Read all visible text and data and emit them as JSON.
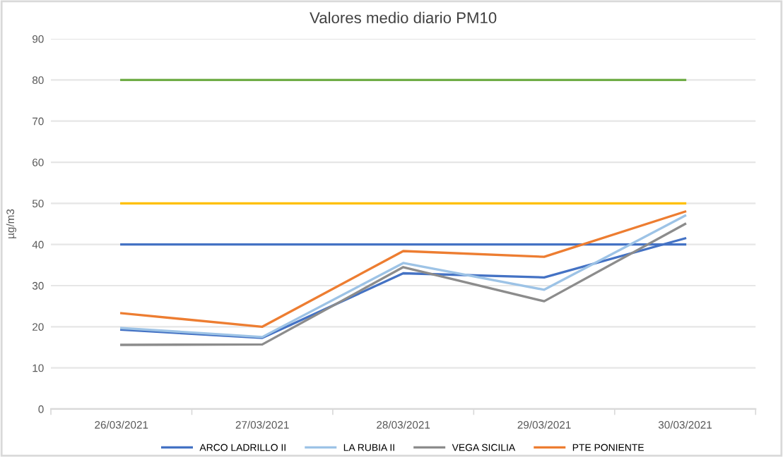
{
  "chart_data": {
    "type": "line",
    "title": "Valores medio diario PM10",
    "ylabel": "µg/m3",
    "categories": [
      "26/03/2021",
      "27/03/2021",
      "28/03/2021",
      "29/03/2021",
      "30/03/2021"
    ],
    "series": [
      {
        "name": "ARCO LADRILLO II",
        "color": "#4472c4",
        "values": [
          19.3,
          17.3,
          33,
          32,
          41.5
        ]
      },
      {
        "name": "LA RUBIA II",
        "color": "#9dc3e6",
        "values": [
          19.7,
          17.5,
          35.5,
          29,
          47
        ]
      },
      {
        "name": "VEGA SICILIA",
        "color": "#8c8c8c",
        "values": [
          15.6,
          15.7,
          34.5,
          26.2,
          45
        ]
      },
      {
        "name": "PTE PONIENTE",
        "color": "#ed7d31",
        "values": [
          23.3,
          20,
          38.4,
          37,
          48
        ]
      }
    ],
    "ref_lines": [
      {
        "axis": "y",
        "value": 80,
        "color": "#70ad47"
      },
      {
        "axis": "y",
        "value": 50,
        "color": "#ffc000"
      },
      {
        "axis": "y",
        "value": 40,
        "color": "#4472c4"
      }
    ],
    "ylim": [
      0,
      90
    ],
    "yticks": [
      0,
      10,
      20,
      30,
      40,
      50,
      60,
      70,
      80,
      90
    ],
    "grid": "y",
    "legend": "bottom",
    "marker": "none",
    "line_style": "solid"
  }
}
